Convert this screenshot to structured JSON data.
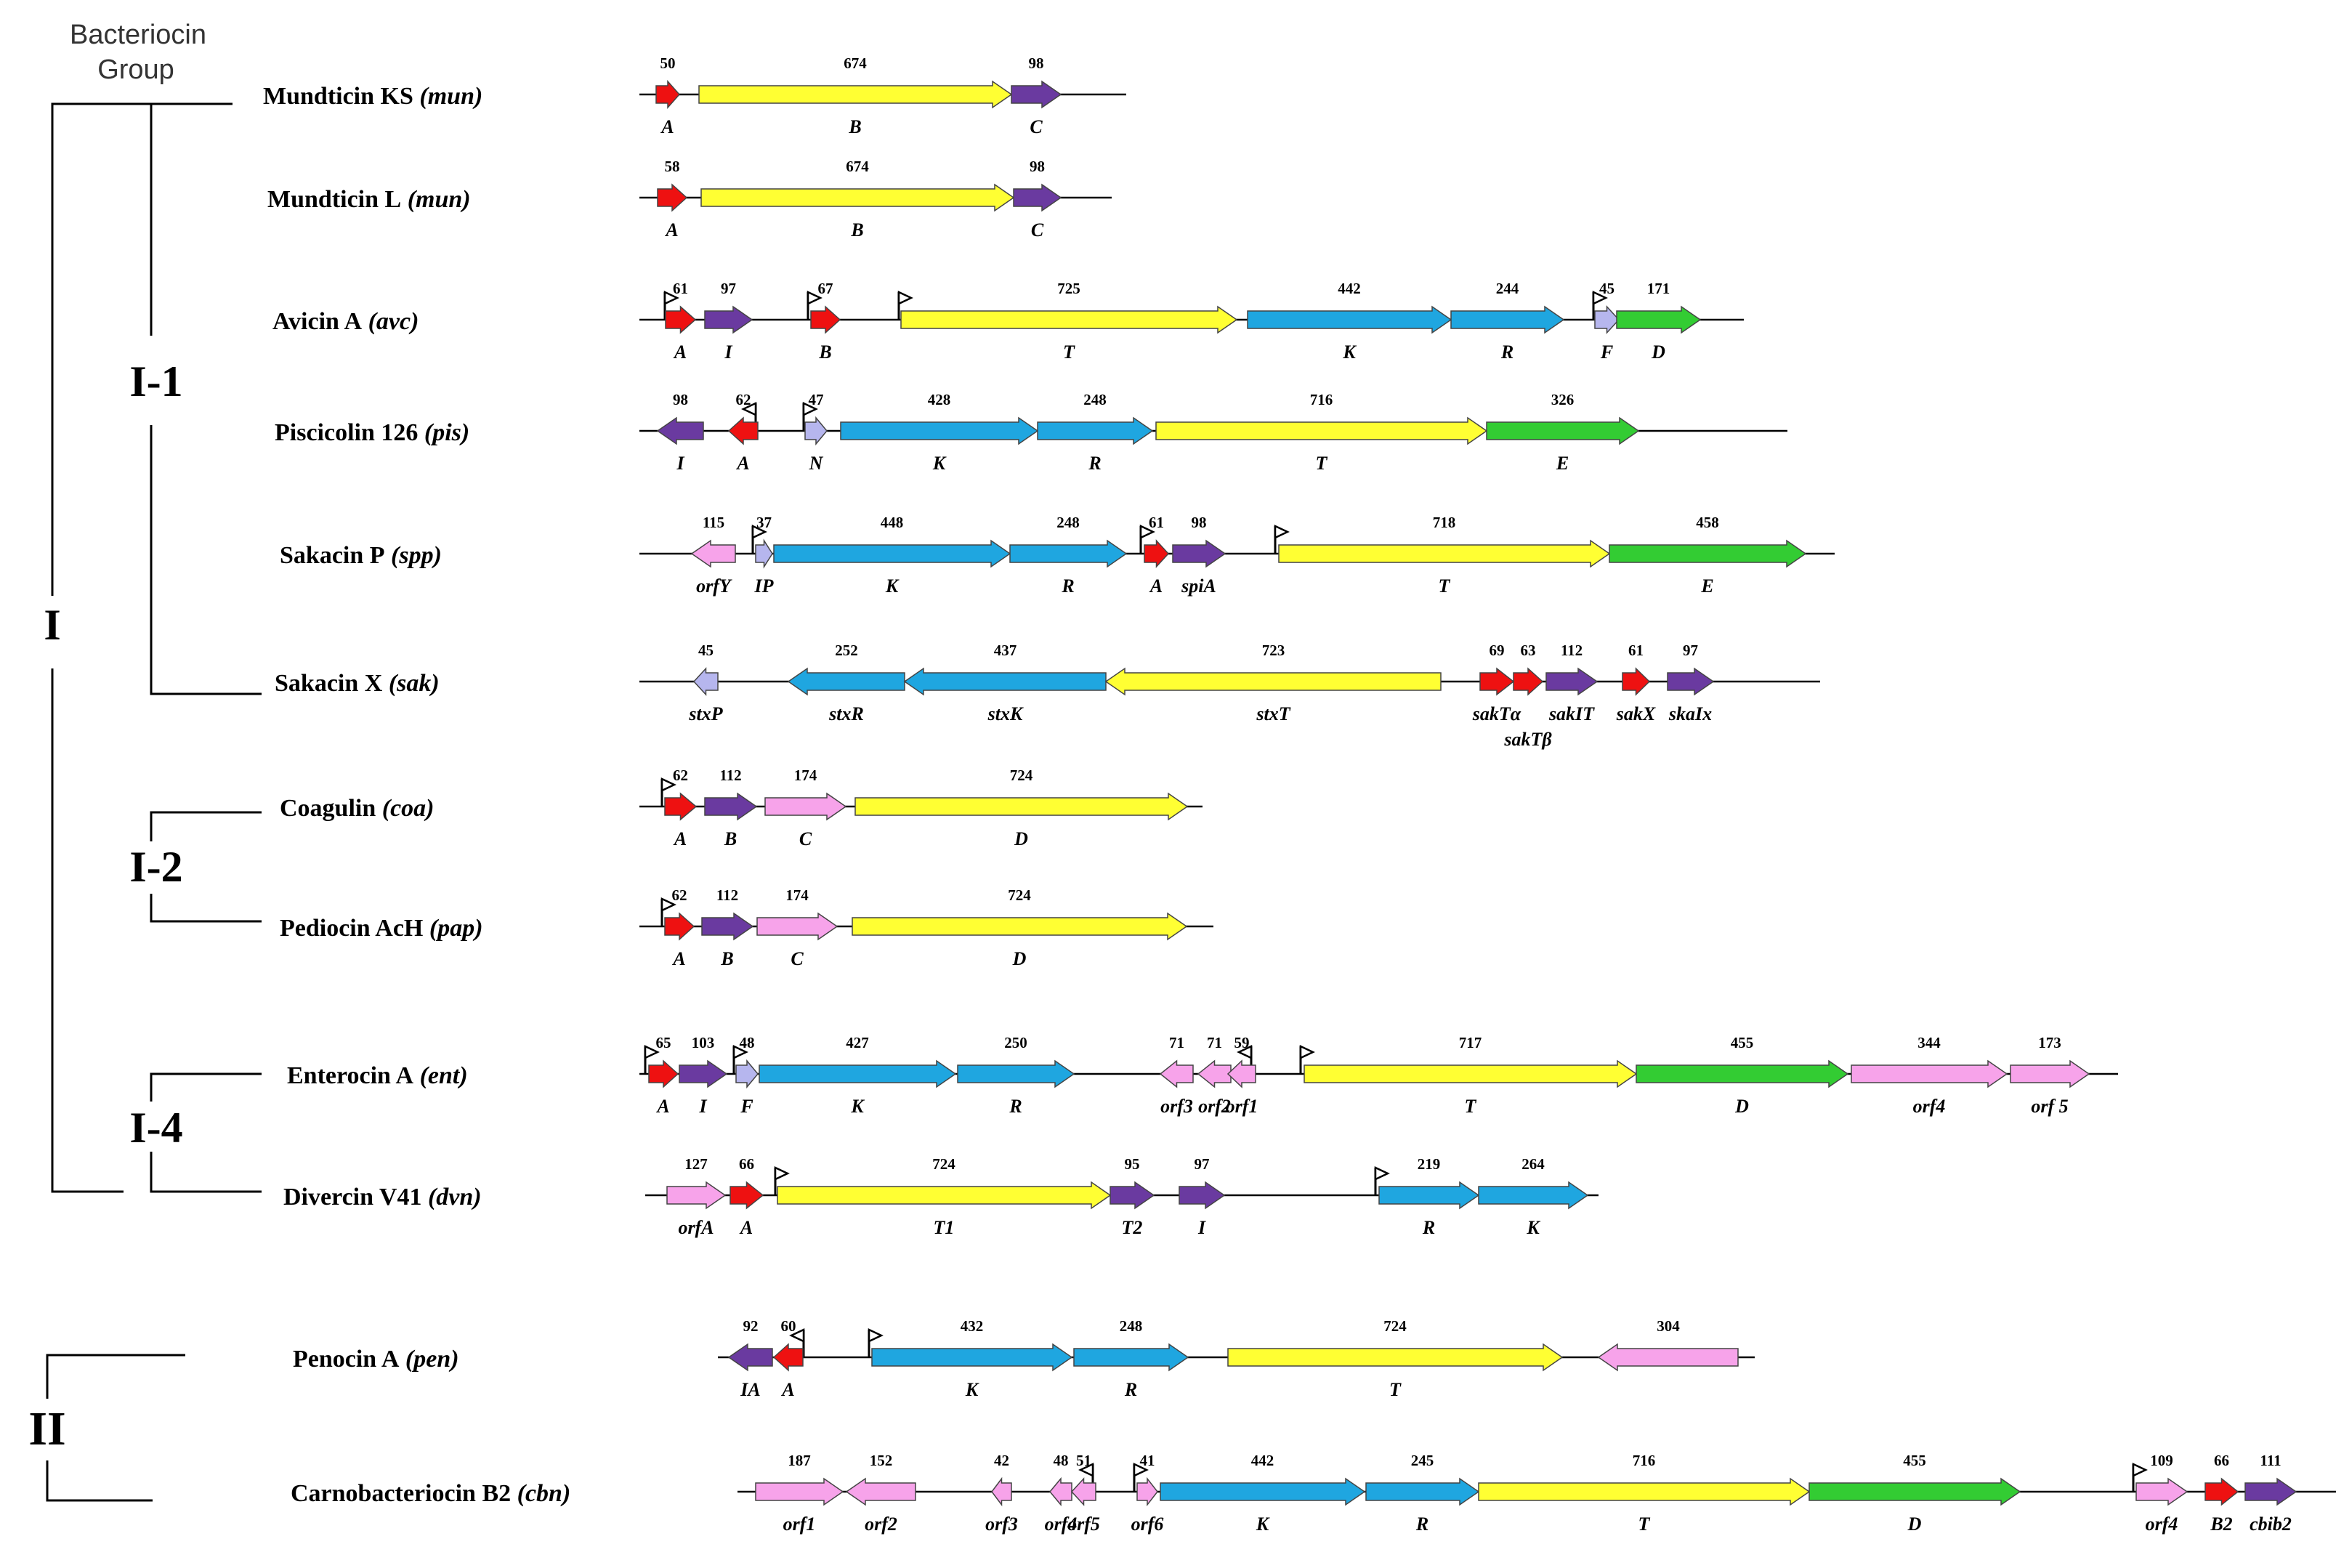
{
  "title_line1": "Bacteriocin",
  "title_line2": "Group",
  "groups": {
    "I": "I",
    "II": "II",
    "I1": "I-1",
    "I2": "I-2",
    "I4": "I-4"
  },
  "colors": {
    "red": "#ee1111",
    "yellow": "#ffff33",
    "purple": "#6a3aa0",
    "blue": "#1fa6e0",
    "green": "#33cc33",
    "pink": "#f7a3ea",
    "lav": "#b6b6ee"
  },
  "clusters": [
    {
      "name": "Mundticin KS",
      "abbr": "mun",
      "genes": [
        {
          "size": "50",
          "name": "A",
          "color": "red",
          "dir": 1
        },
        {
          "size": "674",
          "name": "B",
          "color": "yellow",
          "dir": 1
        },
        {
          "size": "98",
          "name": "C",
          "color": "purple",
          "dir": 1
        }
      ]
    },
    {
      "name": "Mundticin L",
      "abbr": "mun",
      "genes": [
        {
          "size": "58",
          "name": "A",
          "color": "red",
          "dir": 1
        },
        {
          "size": "674",
          "name": "B",
          "color": "yellow",
          "dir": 1
        },
        {
          "size": "98",
          "name": "C",
          "color": "purple",
          "dir": 1
        }
      ]
    },
    {
      "name": "Avicin A",
      "abbr": "avc",
      "genes": [
        {
          "size": "61",
          "name": "A",
          "color": "red",
          "dir": 1
        },
        {
          "size": "97",
          "name": "I",
          "color": "purple",
          "dir": 1
        },
        {
          "size": "67",
          "name": "B",
          "color": "red",
          "dir": 1
        },
        {
          "size": "725",
          "name": "T",
          "color": "yellow",
          "dir": 1
        },
        {
          "size": "442",
          "name": "K",
          "color": "blue",
          "dir": 1
        },
        {
          "size": "244",
          "name": "R",
          "color": "blue",
          "dir": 1
        },
        {
          "size": "45",
          "name": "F",
          "color": "lav",
          "dir": 1
        },
        {
          "size": "171",
          "name": "D",
          "color": "green",
          "dir": 1
        }
      ]
    },
    {
      "name": "Piscicolin 126",
      "abbr": "pis",
      "genes": [
        {
          "size": "98",
          "name": "I",
          "color": "purple",
          "dir": -1
        },
        {
          "size": "62",
          "name": "A",
          "color": "red",
          "dir": -1
        },
        {
          "size": "47",
          "name": "N",
          "color": "lav",
          "dir": 1
        },
        {
          "size": "428",
          "name": "K",
          "color": "blue",
          "dir": 1
        },
        {
          "size": "248",
          "name": "R",
          "color": "blue",
          "dir": 1
        },
        {
          "size": "716",
          "name": "T",
          "color": "yellow",
          "dir": 1
        },
        {
          "size": "326",
          "name": "E",
          "color": "green",
          "dir": 1
        }
      ]
    },
    {
      "name": "Sakacin P",
      "abbr": "spp",
      "genes": [
        {
          "size": "115",
          "name": "orfY",
          "color": "pink",
          "dir": -1
        },
        {
          "size": "37",
          "name": "IP",
          "color": "lav",
          "dir": 1
        },
        {
          "size": "448",
          "name": "K",
          "color": "blue",
          "dir": 1
        },
        {
          "size": "248",
          "name": "R",
          "color": "blue",
          "dir": 1
        },
        {
          "size": "61",
          "name": "A",
          "color": "red",
          "dir": 1
        },
        {
          "size": "98",
          "name": "spiA",
          "color": "purple",
          "dir": 1
        },
        {
          "size": "718",
          "name": "T",
          "color": "yellow",
          "dir": 1
        },
        {
          "size": "458",
          "name": "E",
          "color": "green",
          "dir": 1
        }
      ]
    },
    {
      "name": "Sakacin X",
      "abbr": "sak",
      "genes": [
        {
          "size": "45",
          "name": "stxP",
          "color": "lav",
          "dir": -1
        },
        {
          "size": "252",
          "name": "stxR",
          "color": "blue",
          "dir": -1
        },
        {
          "size": "437",
          "name": "stxK",
          "color": "blue",
          "dir": -1
        },
        {
          "size": "723",
          "name": "stxT",
          "color": "yellow",
          "dir": -1
        },
        {
          "size": "69",
          "name": "sakTα",
          "color": "red",
          "dir": 1
        },
        {
          "size": "63",
          "name": "sakTβ",
          "color": "red",
          "dir": 1
        },
        {
          "size": "112",
          "name": "sakIT",
          "color": "purple",
          "dir": 1
        },
        {
          "size": "61",
          "name": "sakX",
          "color": "red",
          "dir": 1
        },
        {
          "size": "97",
          "name": "skaIx",
          "color": "purple",
          "dir": 1
        }
      ]
    },
    {
      "name": "Coagulin",
      "abbr": "coa",
      "genes": [
        {
          "size": "62",
          "name": "A",
          "color": "red",
          "dir": 1
        },
        {
          "size": "112",
          "name": "B",
          "color": "purple",
          "dir": 1
        },
        {
          "size": "174",
          "name": "C",
          "color": "pink",
          "dir": 1
        },
        {
          "size": "724",
          "name": "D",
          "color": "yellow",
          "dir": 1
        }
      ]
    },
    {
      "name": "Pediocin AcH",
      "abbr": "pap",
      "genes": [
        {
          "size": "62",
          "name": "A",
          "color": "red",
          "dir": 1
        },
        {
          "size": "112",
          "name": "B",
          "color": "purple",
          "dir": 1
        },
        {
          "size": "174",
          "name": "C",
          "color": "pink",
          "dir": 1
        },
        {
          "size": "724",
          "name": "D",
          "color": "yellow",
          "dir": 1
        }
      ]
    },
    {
      "name": "Enterocin A",
      "abbr": "ent",
      "genes": [
        {
          "size": "65",
          "name": "A",
          "color": "red",
          "dir": 1
        },
        {
          "size": "103",
          "name": "I",
          "color": "purple",
          "dir": 1
        },
        {
          "size": "48",
          "name": "F",
          "color": "lav",
          "dir": 1
        },
        {
          "size": "427",
          "name": "K",
          "color": "blue",
          "dir": 1
        },
        {
          "size": "250",
          "name": "R",
          "color": "blue",
          "dir": 1
        },
        {
          "size": "71",
          "name": "orf3",
          "color": "pink",
          "dir": -1
        },
        {
          "size": "71",
          "name": "orf2",
          "color": "pink",
          "dir": -1
        },
        {
          "size": "59",
          "name": "orf1",
          "color": "pink",
          "dir": -1
        },
        {
          "size": "717",
          "name": "T",
          "color": "yellow",
          "dir": 1
        },
        {
          "size": "455",
          "name": "D",
          "color": "green",
          "dir": 1
        },
        {
          "size": "344",
          "name": "orf4",
          "color": "pink",
          "dir": 1
        },
        {
          "size": "173",
          "name": "orf 5",
          "color": "pink",
          "dir": 1
        }
      ]
    },
    {
      "name": "Divercin V41",
      "abbr": "dvn",
      "genes": [
        {
          "size": "127",
          "name": "orfA",
          "color": "pink",
          "dir": 1
        },
        {
          "size": "66",
          "name": "A",
          "color": "red",
          "dir": 1
        },
        {
          "size": "724",
          "name": "T1",
          "color": "yellow",
          "dir": 1
        },
        {
          "size": "95",
          "name": "T2",
          "color": "purple",
          "dir": 1
        },
        {
          "size": "97",
          "name": "I",
          "color": "purple",
          "dir": 1
        },
        {
          "size": "219",
          "name": "R",
          "color": "blue",
          "dir": 1
        },
        {
          "size": "264",
          "name": "K",
          "color": "blue",
          "dir": 1
        }
      ]
    },
    {
      "name": "Penocin A",
      "abbr": "pen",
      "genes": [
        {
          "size": "92",
          "name": "IA",
          "color": "purple",
          "dir": -1
        },
        {
          "size": "60",
          "name": "A",
          "color": "red",
          "dir": -1
        },
        {
          "size": "432",
          "name": "K",
          "color": "blue",
          "dir": 1
        },
        {
          "size": "248",
          "name": "R",
          "color": "blue",
          "dir": 1
        },
        {
          "size": "724",
          "name": "T",
          "color": "yellow",
          "dir": 1
        },
        {
          "size": "304",
          "name": "",
          "color": "pink",
          "dir": -1
        }
      ]
    },
    {
      "name": "Carnobacteriocin B2",
      "abbr": "cbn",
      "genes": [
        {
          "size": "187",
          "name": "orf1",
          "color": "pink",
          "dir": 1
        },
        {
          "size": "152",
          "name": "orf2",
          "color": "pink",
          "dir": -1
        },
        {
          "size": "42",
          "name": "orf3",
          "color": "pink",
          "dir": -1
        },
        {
          "size": "48",
          "name": "orf4",
          "color": "pink",
          "dir": -1
        },
        {
          "size": "51",
          "name": "orf5",
          "color": "pink",
          "dir": -1
        },
        {
          "size": "41",
          "name": "orf6",
          "color": "pink",
          "dir": 1
        },
        {
          "size": "442",
          "name": "K",
          "color": "blue",
          "dir": 1
        },
        {
          "size": "245",
          "name": "R",
          "color": "blue",
          "dir": 1
        },
        {
          "size": "716",
          "name": "T",
          "color": "yellow",
          "dir": 1
        },
        {
          "size": "455",
          "name": "D",
          "color": "green",
          "dir": 1
        },
        {
          "size": "109",
          "name": "orf4",
          "color": "pink",
          "dir": 1
        },
        {
          "size": "66",
          "name": "B2",
          "color": "red",
          "dir": 1
        },
        {
          "size": "111",
          "name": "cbib2",
          "color": "purple",
          "dir": 1
        }
      ]
    }
  ]
}
